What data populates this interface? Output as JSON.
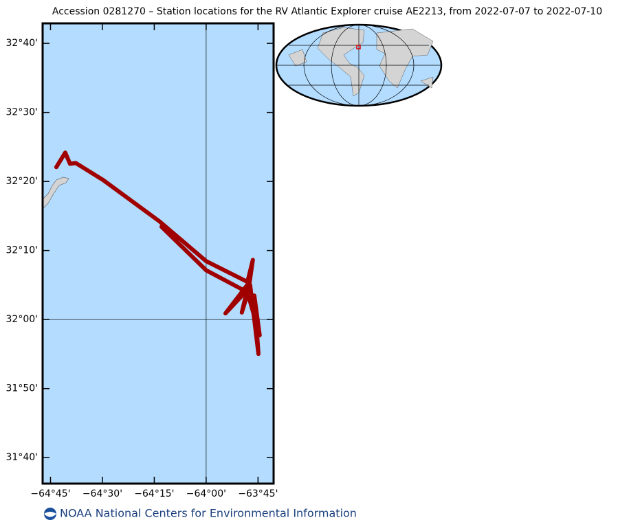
{
  "chart_data": {
    "type": "track",
    "title": "Accession 0281270 – Station locations for the RV Atlantic Explorer cruise AE2213, from 2022-07-07 to 2022-07-10",
    "x": [
      -64.722,
      -64.679,
      -64.656,
      -64.629,
      -64.497,
      -64.225,
      -64.0,
      -63.801,
      -63.775,
      -63.795,
      -63.907,
      -63.795,
      -63.828,
      -63.788,
      -63.748,
      -63.768,
      -63.742,
      -63.801,
      -64.0,
      -64.215
    ],
    "y": [
      32.368,
      32.403,
      32.376,
      32.378,
      32.337,
      32.237,
      32.141,
      32.091,
      32.144,
      32.075,
      32.015,
      32.088,
      32.017,
      32.083,
      31.917,
      32.058,
      31.962,
      32.066,
      32.119,
      32.224
    ],
    "color": "#a00000",
    "xlim": [
      -64.788,
      -63.675
    ],
    "ylim": [
      31.604,
      32.715
    ],
    "xticks": [
      {
        "value": -64.75,
        "label": "−64°45'"
      },
      {
        "value": -64.5,
        "label": "−64°30'"
      },
      {
        "value": -64.25,
        "label": "−64°15'"
      },
      {
        "value": -64,
        "label": "−64°00'"
      },
      {
        "value": -63.75,
        "label": "−63°45'"
      }
    ],
    "yticks": [
      {
        "value": 31.6667,
        "label": "31°40'"
      },
      {
        "value": 31.8333,
        "label": "31°50'"
      },
      {
        "value": 32,
        "label": "32°00'"
      },
      {
        "value": 32.1667,
        "label": "32°10'"
      },
      {
        "value": 32.3333,
        "label": "32°20'"
      },
      {
        "value": 32.5,
        "label": "32°30'"
      },
      {
        "value": 32.6667,
        "label": "32°40'"
      }
    ],
    "ref_lon": -64,
    "ref_lat": 32
  },
  "footer": "NOAA National Centers for Environmental Information"
}
